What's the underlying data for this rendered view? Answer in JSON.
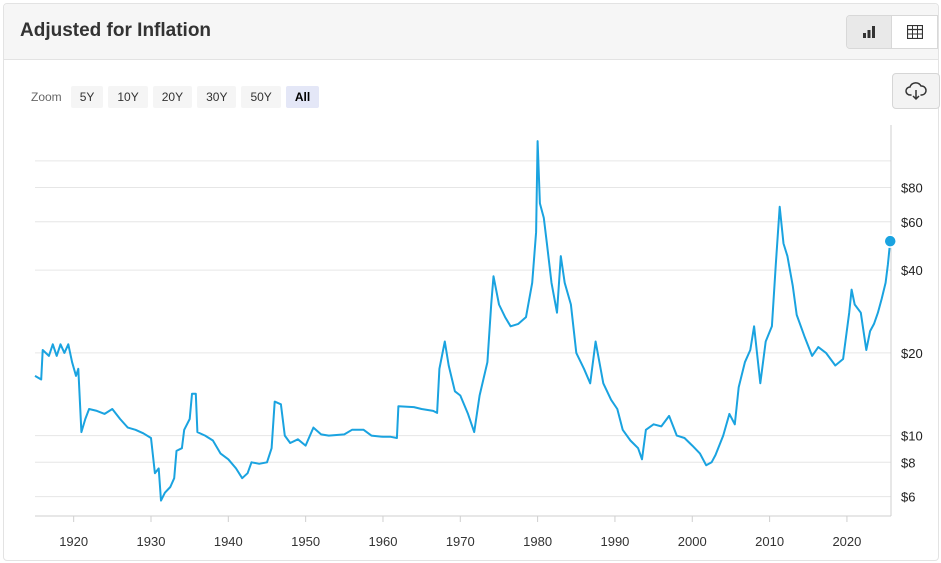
{
  "header": {
    "title": "Adjusted for Inflation"
  },
  "view_toggle": {
    "chart_icon": "bar-chart-icon",
    "table_icon": "table-icon"
  },
  "zoom": {
    "label": "Zoom",
    "buttons": [
      {
        "label": "5Y",
        "active": false
      },
      {
        "label": "10Y",
        "active": false
      },
      {
        "label": "20Y",
        "active": false
      },
      {
        "label": "30Y",
        "active": false
      },
      {
        "label": "50Y",
        "active": false
      },
      {
        "label": "All",
        "active": true
      }
    ]
  },
  "download": {
    "icon": "cloud-download-icon"
  },
  "colors": {
    "line": "#1aa3e0",
    "grid": "#e6e6e6",
    "point": "#1aa3e0"
  },
  "chart_data": {
    "type": "line",
    "title": "Adjusted for Inflation",
    "xlabel": "",
    "ylabel": "",
    "y_scale": "log",
    "ylim": [
      5.1,
      135
    ],
    "xlim": [
      1915,
      2025.7
    ],
    "grid": true,
    "y_ticks": [
      {
        "value": 6,
        "label": "$6"
      },
      {
        "value": 8,
        "label": "$8"
      },
      {
        "value": 10,
        "label": "$10"
      },
      {
        "value": 20,
        "label": "$20"
      },
      {
        "value": 40,
        "label": "$40"
      },
      {
        "value": 60,
        "label": "$60"
      },
      {
        "value": 80,
        "label": "$80"
      }
    ],
    "x_ticks": [
      {
        "value": 1920,
        "label": "1920"
      },
      {
        "value": 1930,
        "label": "1930"
      },
      {
        "value": 1940,
        "label": "1940"
      },
      {
        "value": 1950,
        "label": "1950"
      },
      {
        "value": 1960,
        "label": "1960"
      },
      {
        "value": 1970,
        "label": "1970"
      },
      {
        "value": 1980,
        "label": "1980"
      },
      {
        "value": 1990,
        "label": "1990"
      },
      {
        "value": 2000,
        "label": "2000"
      },
      {
        "value": 2010,
        "label": "2010"
      },
      {
        "value": 2020,
        "label": "2020"
      }
    ],
    "series": [
      {
        "points": [
          [
            1915.0,
            16.5
          ],
          [
            1915.8,
            16.0
          ],
          [
            1916.0,
            20.5
          ],
          [
            1916.8,
            19.5
          ],
          [
            1917.3,
            21.5
          ],
          [
            1917.8,
            19.5
          ],
          [
            1918.3,
            21.5
          ],
          [
            1918.8,
            20.0
          ],
          [
            1919.3,
            21.5
          ],
          [
            1919.8,
            18.5
          ],
          [
            1920.3,
            16.5
          ],
          [
            1920.6,
            17.5
          ],
          [
            1921.0,
            10.3
          ],
          [
            1921.5,
            11.5
          ],
          [
            1922.0,
            12.5
          ],
          [
            1923.0,
            12.3
          ],
          [
            1924.0,
            12.0
          ],
          [
            1925.0,
            12.5
          ],
          [
            1926.0,
            11.5
          ],
          [
            1927.0,
            10.7
          ],
          [
            1928.0,
            10.5
          ],
          [
            1929.0,
            10.2
          ],
          [
            1930.0,
            9.8
          ],
          [
            1930.5,
            7.3
          ],
          [
            1931.0,
            7.6
          ],
          [
            1931.3,
            5.8
          ],
          [
            1931.8,
            6.2
          ],
          [
            1932.5,
            6.5
          ],
          [
            1933.0,
            7.0
          ],
          [
            1933.3,
            8.8
          ],
          [
            1934.0,
            9.0
          ],
          [
            1934.3,
            10.5
          ],
          [
            1935.0,
            11.5
          ],
          [
            1935.3,
            14.2
          ],
          [
            1935.8,
            14.2
          ],
          [
            1936.0,
            10.3
          ],
          [
            1937.0,
            10.0
          ],
          [
            1938.0,
            9.6
          ],
          [
            1939.0,
            8.6
          ],
          [
            1940.0,
            8.2
          ],
          [
            1941.0,
            7.6
          ],
          [
            1941.8,
            7.0
          ],
          [
            1942.5,
            7.3
          ],
          [
            1943.0,
            8.0
          ],
          [
            1944.0,
            7.9
          ],
          [
            1945.0,
            8.0
          ],
          [
            1945.6,
            9.0
          ],
          [
            1946.0,
            13.3
          ],
          [
            1946.8,
            13.0
          ],
          [
            1947.3,
            10.0
          ],
          [
            1948.0,
            9.4
          ],
          [
            1949.0,
            9.7
          ],
          [
            1950.0,
            9.2
          ],
          [
            1951.0,
            10.7
          ],
          [
            1952.0,
            10.1
          ],
          [
            1953.0,
            10.0
          ],
          [
            1955.0,
            10.1
          ],
          [
            1956.0,
            10.5
          ],
          [
            1957.5,
            10.5
          ],
          [
            1958.5,
            10.0
          ],
          [
            1960.0,
            9.9
          ],
          [
            1961.0,
            9.9
          ],
          [
            1961.8,
            9.8
          ],
          [
            1962.0,
            12.8
          ],
          [
            1964.0,
            12.7
          ],
          [
            1965.0,
            12.5
          ],
          [
            1966.5,
            12.3
          ],
          [
            1967.0,
            12.1
          ],
          [
            1967.3,
            17.5
          ],
          [
            1968.0,
            22.0
          ],
          [
            1968.5,
            18.0
          ],
          [
            1969.3,
            14.5
          ],
          [
            1970.0,
            14.0
          ],
          [
            1971.0,
            12.0
          ],
          [
            1971.8,
            10.3
          ],
          [
            1972.5,
            14.0
          ],
          [
            1973.5,
            18.5
          ],
          [
            1974.0,
            30.0
          ],
          [
            1974.3,
            38.0
          ],
          [
            1975.0,
            30.0
          ],
          [
            1975.8,
            27.0
          ],
          [
            1976.5,
            25.0
          ],
          [
            1977.5,
            25.5
          ],
          [
            1978.5,
            27.0
          ],
          [
            1979.3,
            36.0
          ],
          [
            1979.8,
            55.0
          ],
          [
            1980.0,
            118.0
          ],
          [
            1980.3,
            70.0
          ],
          [
            1980.8,
            62.0
          ],
          [
            1981.2,
            50.0
          ],
          [
            1981.8,
            36.0
          ],
          [
            1982.5,
            28.0
          ],
          [
            1983.0,
            45.0
          ],
          [
            1983.5,
            36.0
          ],
          [
            1984.3,
            30.0
          ],
          [
            1985.0,
            20.0
          ],
          [
            1986.0,
            17.5
          ],
          [
            1986.8,
            15.5
          ],
          [
            1987.5,
            22.0
          ],
          [
            1988.5,
            15.5
          ],
          [
            1989.5,
            13.5
          ],
          [
            1990.3,
            12.5
          ],
          [
            1991.0,
            10.5
          ],
          [
            1992.0,
            9.6
          ],
          [
            1993.0,
            9.0
          ],
          [
            1993.5,
            8.2
          ],
          [
            1994.0,
            10.5
          ],
          [
            1995.0,
            11.0
          ],
          [
            1996.0,
            10.8
          ],
          [
            1997.0,
            11.8
          ],
          [
            1998.0,
            10.0
          ],
          [
            1999.0,
            9.8
          ],
          [
            2000.0,
            9.2
          ],
          [
            2001.0,
            8.6
          ],
          [
            2001.8,
            7.8
          ],
          [
            2002.5,
            8.0
          ],
          [
            2003.0,
            8.5
          ],
          [
            2004.0,
            10.0
          ],
          [
            2004.8,
            12.0
          ],
          [
            2005.5,
            11.0
          ],
          [
            2006.0,
            15.0
          ],
          [
            2006.8,
            18.5
          ],
          [
            2007.5,
            20.5
          ],
          [
            2008.0,
            25.0
          ],
          [
            2008.8,
            15.5
          ],
          [
            2009.5,
            22.0
          ],
          [
            2010.3,
            25.0
          ],
          [
            2010.8,
            42.0
          ],
          [
            2011.3,
            68.0
          ],
          [
            2011.8,
            50.0
          ],
          [
            2012.3,
            45.0
          ],
          [
            2013.0,
            35.0
          ],
          [
            2013.5,
            27.5
          ],
          [
            2014.5,
            23.0
          ],
          [
            2015.5,
            19.5
          ],
          [
            2016.3,
            21.0
          ],
          [
            2017.3,
            20.0
          ],
          [
            2018.5,
            18.0
          ],
          [
            2019.5,
            19.0
          ],
          [
            2020.3,
            28.0
          ],
          [
            2020.6,
            34.0
          ],
          [
            2021.0,
            30.0
          ],
          [
            2021.8,
            28.0
          ],
          [
            2022.5,
            20.5
          ],
          [
            2023.0,
            24.0
          ],
          [
            2023.5,
            25.5
          ],
          [
            2024.0,
            28.0
          ],
          [
            2024.5,
            31.5
          ],
          [
            2025.0,
            36.0
          ],
          [
            2025.3,
            42.0
          ],
          [
            2025.6,
            51.0
          ]
        ]
      }
    ]
  }
}
